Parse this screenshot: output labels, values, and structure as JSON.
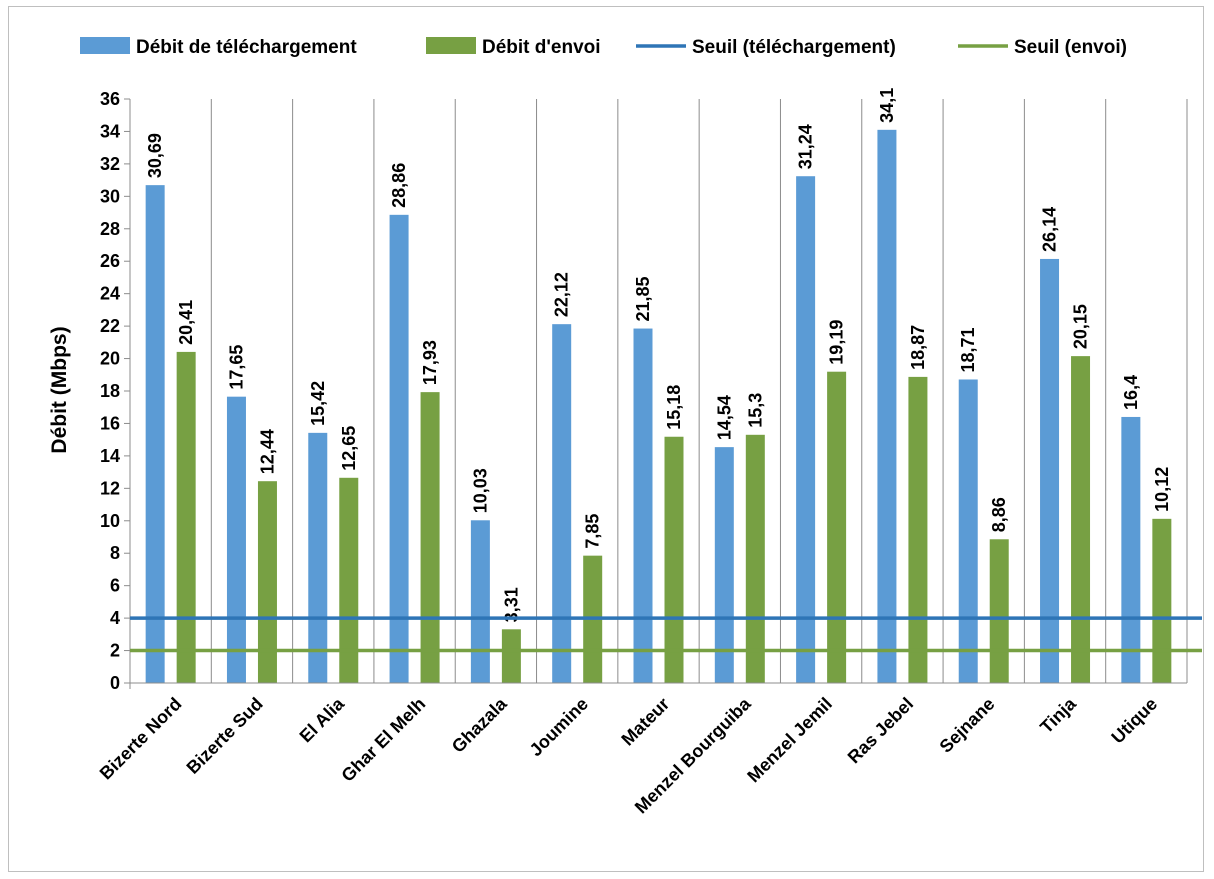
{
  "chart_data": {
    "type": "bar",
    "categories": [
      "Bizerte Nord",
      "Bizerte Sud",
      "El Alia",
      "Ghar El Melh",
      "Ghazala",
      "Joumine",
      "Mateur",
      "Menzel Bourguiba",
      "Menzel Jemil",
      "Ras Jebel",
      "Sejnane",
      "Tinja",
      "Utique"
    ],
    "series": [
      {
        "name": "Débit de téléchargement",
        "color": "#5b9bd5",
        "values": [
          30.69,
          17.65,
          15.42,
          28.86,
          10.03,
          22.12,
          21.85,
          14.54,
          31.24,
          34.1,
          18.71,
          26.14,
          16.4
        ],
        "labels": [
          "30,69",
          "17,65",
          "15,42",
          "28,86",
          "10,03",
          "22,12",
          "21,85",
          "14,54",
          "31,24",
          "34,1",
          "18,71",
          "26,14",
          "16,4"
        ]
      },
      {
        "name": "Débit d'envoi",
        "color": "#77a043",
        "values": [
          20.41,
          12.44,
          12.65,
          17.93,
          3.31,
          7.85,
          15.18,
          15.3,
          19.19,
          18.87,
          8.86,
          20.15,
          10.12
        ],
        "labels": [
          "20,41",
          "12,44",
          "12,65",
          "17,93",
          "3,31",
          "7,85",
          "15,18",
          "15,3",
          "19,19",
          "18,87",
          "8,86",
          "20,15",
          "10,12"
        ]
      }
    ],
    "thresholds": [
      {
        "name": "Seuil (téléchargement)",
        "value": 4,
        "color": "#2e75b6"
      },
      {
        "name": "Seuil (envoi)",
        "value": 2,
        "color": "#77a043"
      }
    ],
    "ylabel": "Débit (Mbps)",
    "ylim": [
      0,
      36
    ],
    "yticks": [
      0,
      2,
      4,
      6,
      8,
      10,
      12,
      14,
      16,
      18,
      20,
      22,
      24,
      26,
      28,
      30,
      32,
      34,
      36
    ],
    "grid": "vertical category separators",
    "legend": "top"
  }
}
